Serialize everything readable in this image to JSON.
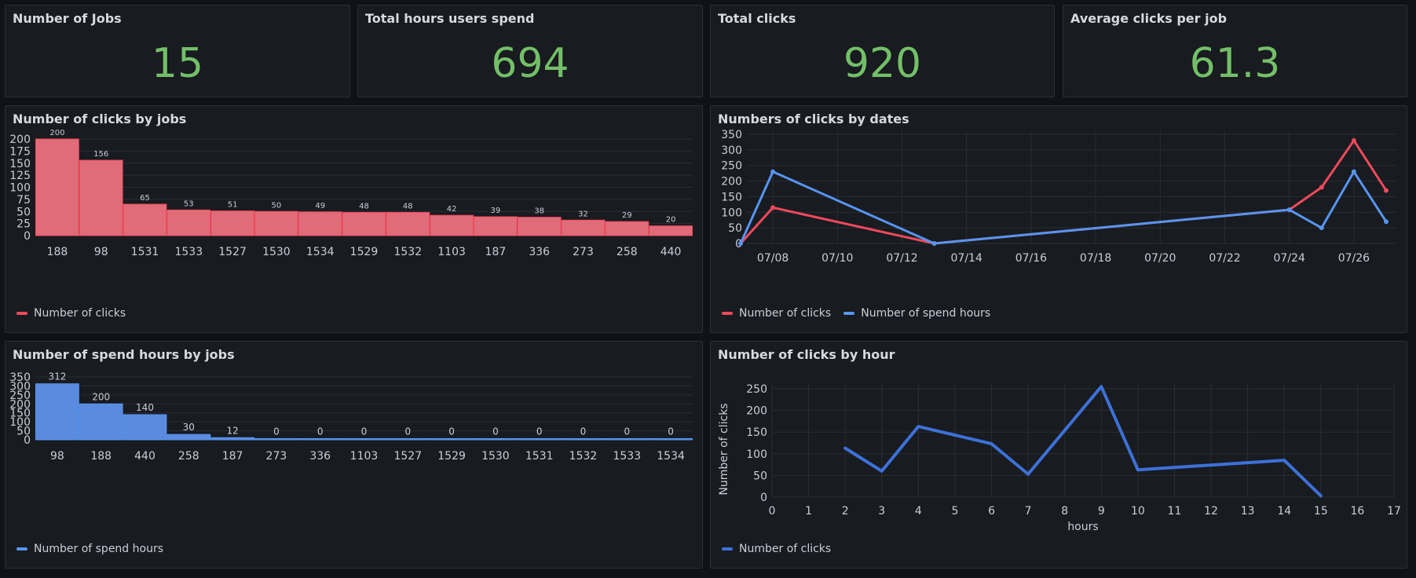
{
  "colors": {
    "red": "#f2495c",
    "red_fill": "#e06c7a",
    "blue": "#5794f2",
    "blue_fill": "#5a8bdf",
    "line_blue": "#3d71d9",
    "stat": "#73bf69"
  },
  "stats": [
    {
      "title": "Number of Jobs",
      "value": "15"
    },
    {
      "title": "Total hours users spend",
      "value": "694"
    },
    {
      "title": "Total clicks",
      "value": "920"
    },
    {
      "title": "Average clicks per job",
      "value": "61.3"
    }
  ],
  "chart_data": [
    {
      "type": "bar",
      "title": "Number of clicks by jobs",
      "categories": [
        "188",
        "98",
        "1531",
        "1533",
        "1527",
        "1530",
        "1534",
        "1529",
        "1532",
        "1103",
        "187",
        "336",
        "273",
        "258",
        "440"
      ],
      "series": [
        {
          "name": "Number of clicks",
          "values": [
            200,
            156,
            65,
            53,
            51,
            50,
            49,
            48,
            48,
            42,
            39,
            38,
            32,
            29,
            20
          ]
        }
      ],
      "yticks": [
        0,
        25,
        50,
        75,
        100,
        125,
        150,
        175,
        200
      ],
      "ylim": [
        0,
        200
      ],
      "legend": "bottom-left"
    },
    {
      "type": "line",
      "title": "Numbers of clicks by dates",
      "x_ticks": [
        "07/08",
        "07/10",
        "07/12",
        "07/14",
        "07/16",
        "07/18",
        "07/20",
        "07/22",
        "07/24",
        "07/26"
      ],
      "series": [
        {
          "name": "Number of clicks",
          "x": [
            "07/07",
            "07/08",
            "07/13",
            "07/24",
            "07/25",
            "07/26",
            "07/27"
          ],
          "values": [
            0,
            115,
            0,
            108,
            180,
            330,
            170
          ]
        },
        {
          "name": "Number of spend hours",
          "x": [
            "07/07",
            "07/08",
            "07/13",
            "07/24",
            "07/25",
            "07/26",
            "07/27"
          ],
          "values": [
            0,
            230,
            0,
            108,
            50,
            230,
            70
          ]
        }
      ],
      "yticks": [
        0,
        50,
        100,
        150,
        200,
        250,
        300,
        350
      ],
      "ylim": [
        0,
        350
      ],
      "legend": "bottom-left"
    },
    {
      "type": "bar",
      "title": "Number of spend hours by jobs",
      "categories": [
        "98",
        "188",
        "440",
        "258",
        "187",
        "273",
        "336",
        "1103",
        "1527",
        "1529",
        "1530",
        "1531",
        "1532",
        "1533",
        "1534"
      ],
      "series": [
        {
          "name": "Number of spend hours",
          "values": [
            312,
            200,
            140,
            30,
            12,
            0,
            0,
            0,
            0,
            0,
            0,
            0,
            0,
            0,
            0
          ]
        }
      ],
      "yticks": [
        0,
        50,
        100,
        150,
        200,
        250,
        300,
        350
      ],
      "ylim": [
        0,
        350
      ],
      "legend": "bottom-left"
    },
    {
      "type": "line",
      "title": "Number of clicks by hour",
      "xlabel": "hours",
      "ylabel": "Number of clicks",
      "x_ticks": [
        0,
        1,
        2,
        3,
        4,
        5,
        6,
        7,
        8,
        9,
        10,
        11,
        12,
        13,
        14,
        15,
        16,
        17
      ],
      "series": [
        {
          "name": "Number of clicks",
          "x": [
            2,
            3,
            4,
            6,
            7,
            9,
            10,
            14,
            15
          ],
          "values": [
            113,
            60,
            163,
            123,
            53,
            255,
            63,
            85,
            3
          ]
        }
      ],
      "yticks": [
        0,
        50,
        100,
        150,
        200,
        250
      ],
      "xlim": [
        0,
        17
      ],
      "ylim": [
        0,
        250
      ],
      "legend": "bottom-left"
    }
  ]
}
